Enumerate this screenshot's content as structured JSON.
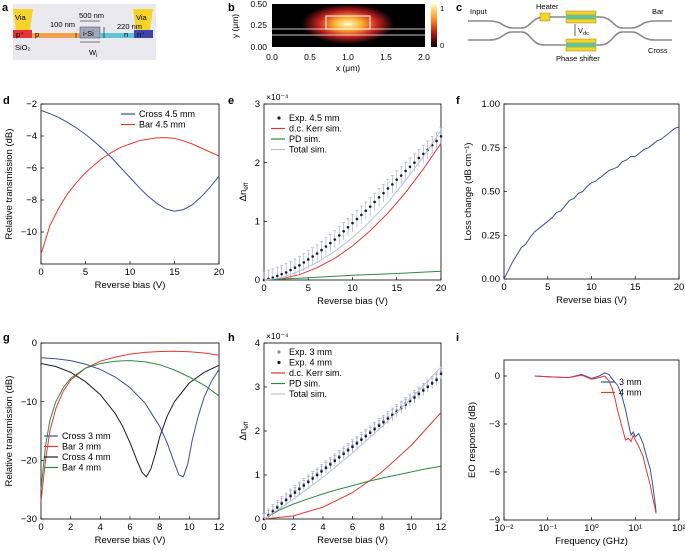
{
  "panels": {
    "a": {
      "label": "a",
      "via_left": "Via",
      "via_right": "Via",
      "p_plus": "p⁺",
      "p": "p",
      "i_si": "i-Si",
      "n": "n",
      "n_plus": "n⁺",
      "dim_100": "100 nm",
      "dim_500": "500 nm",
      "dim_220": "220 nm",
      "wi": "W",
      "wi_sub": "i",
      "sio2": "SiO₂"
    },
    "b": {
      "label": "b",
      "ylabel": "y (μm)",
      "xlabel": "x (μm)",
      "x_ticks": [
        "0.0",
        "0.5",
        "1.0",
        "1.5",
        "2.0"
      ],
      "y_ticks": [
        "0.50",
        "0.25",
        "0.00"
      ],
      "field_label": "e",
      "field_sup": "z",
      "field_sub": "ω",
      "sio2": "SiO₂",
      "cbar_ticks": [
        "1",
        "0"
      ]
    },
    "c": {
      "label": "c",
      "input": "Input",
      "heater": "Heater",
      "bar": "Bar",
      "cross": "Cross",
      "phase_shifter": "Phase shifter",
      "vdc": "V",
      "vdc_sub": "dc"
    }
  },
  "colors": {
    "blue": "#3a4fa0",
    "red": "#e03a33",
    "green": "#2d8a44",
    "grey": "#b8c0d8",
    "dark": "#1b1b2e",
    "via": "#f5d328"
  },
  "chart_data": [
    {
      "id": "d",
      "label": "d",
      "type": "line",
      "xlabel": "Reverse bias (V)",
      "ylabel": "Relative transmission (dB)",
      "xlim": [
        0,
        20
      ],
      "ylim": [
        -12,
        -2
      ],
      "xticks": [
        0,
        5,
        10,
        15,
        20
      ],
      "yticks": [
        -2,
        -4,
        -6,
        -8,
        -10
      ],
      "legend_position": "top-center",
      "series": [
        {
          "name": "Cross 4.5 mm",
          "color": "#3a4fa0",
          "x": [
            0,
            1,
            2,
            3,
            4,
            5,
            6,
            7,
            8,
            9,
            10,
            11,
            12,
            13,
            14,
            15,
            16,
            17,
            18,
            19,
            20
          ],
          "y": [
            -2.4,
            -2.6,
            -2.85,
            -3.15,
            -3.5,
            -3.9,
            -4.35,
            -4.85,
            -5.4,
            -6.0,
            -6.6,
            -7.2,
            -7.75,
            -8.2,
            -8.55,
            -8.7,
            -8.6,
            -8.3,
            -7.8,
            -7.2,
            -6.5
          ]
        },
        {
          "name": "Bar 4.5 mm",
          "color": "#e03a33",
          "x": [
            0,
            1,
            2,
            3,
            4,
            5,
            6,
            7,
            8,
            9,
            10,
            11,
            12,
            13,
            14,
            15,
            16,
            17,
            18,
            19,
            20
          ],
          "y": [
            -11.4,
            -9.6,
            -8.5,
            -7.6,
            -6.9,
            -6.3,
            -5.8,
            -5.35,
            -5.0,
            -4.7,
            -4.5,
            -4.3,
            -4.2,
            -4.12,
            -4.1,
            -4.15,
            -4.3,
            -4.5,
            -4.75,
            -5.0,
            -5.25
          ]
        }
      ]
    },
    {
      "id": "e",
      "label": "e",
      "type": "scatter",
      "xlabel": "Reverse bias (V)",
      "ylabel": "Δn",
      "ylabel_sub": "eff",
      "exponent": "×10⁻⁴",
      "xlim": [
        0,
        20
      ],
      "ylim": [
        0,
        3
      ],
      "xticks": [
        0,
        5,
        10,
        15,
        20
      ],
      "yticks": [
        0,
        1,
        2,
        3
      ],
      "legend_position": "top-left",
      "series": [
        {
          "name": "Exp. 4.5 mm",
          "color": "#1b1b2e",
          "kind": "points_err",
          "x": [
            0,
            0.5,
            1,
            1.5,
            2,
            2.5,
            3,
            3.5,
            4,
            4.5,
            5,
            5.5,
            6,
            6.5,
            7,
            7.5,
            8,
            8.5,
            9,
            9.5,
            10,
            10.5,
            11,
            11.5,
            12,
            12.5,
            13,
            13.5,
            14,
            14.5,
            15,
            15.5,
            16,
            16.5,
            17,
            17.5,
            18,
            18.5,
            19,
            19.5,
            20
          ],
          "y": [
            0,
            0.02,
            0.04,
            0.07,
            0.1,
            0.13,
            0.17,
            0.21,
            0.25,
            0.3,
            0.35,
            0.4,
            0.45,
            0.51,
            0.57,
            0.63,
            0.69,
            0.76,
            0.83,
            0.9,
            0.97,
            1.04,
            1.11,
            1.18,
            1.25,
            1.33,
            1.41,
            1.48,
            1.56,
            1.63,
            1.71,
            1.78,
            1.86,
            1.93,
            2.0,
            2.08,
            2.15,
            2.22,
            2.3,
            2.37,
            2.45
          ],
          "err": 0.15
        },
        {
          "name": "d.c. Kerr sim.",
          "color": "#e03a33",
          "kind": "line",
          "x": [
            0,
            2,
            4,
            6,
            8,
            10,
            12,
            14,
            16,
            18,
            20
          ],
          "y": [
            0,
            0.02,
            0.09,
            0.21,
            0.37,
            0.58,
            0.84,
            1.14,
            1.49,
            1.89,
            2.33
          ]
        },
        {
          "name": "PD sim.",
          "color": "#2d8a44",
          "kind": "line",
          "x": [
            0,
            5,
            10,
            15,
            20
          ],
          "y": [
            0,
            0.04,
            0.08,
            0.11,
            0.15
          ]
        },
        {
          "name": "Total sim.",
          "color": "#b8c0d8",
          "kind": "line",
          "x": [
            0,
            2,
            4,
            6,
            8,
            10,
            12,
            14,
            16,
            18,
            20
          ],
          "y": [
            0,
            0.04,
            0.15,
            0.3,
            0.49,
            0.72,
            1.0,
            1.32,
            1.7,
            2.1,
            2.55
          ]
        }
      ]
    },
    {
      "id": "f",
      "label": "f",
      "type": "line",
      "xlabel": "Reverse bias (V)",
      "ylabel": "Loss change (dB cm⁻¹)",
      "xlim": [
        0,
        20
      ],
      "ylim": [
        0,
        1.0
      ],
      "xticks": [
        0,
        5,
        10,
        15,
        20
      ],
      "yticks": [
        0,
        0.25,
        0.5,
        0.75,
        1.0
      ],
      "ytick_labels": [
        "0.00",
        "0.25",
        "0.50",
        "0.75",
        "1.00"
      ],
      "series": [
        {
          "name": "",
          "color": "#3a4fa0",
          "x": [
            0,
            0.5,
            1,
            1.5,
            2,
            2.5,
            3,
            3.5,
            4,
            4.5,
            5,
            5.5,
            6,
            6.5,
            7,
            7.5,
            8,
            8.5,
            9,
            9.5,
            10,
            10.5,
            11,
            11.5,
            12,
            12.5,
            13,
            13.5,
            14,
            14.5,
            15,
            15.5,
            16,
            16.5,
            17,
            17.5,
            18,
            18.5,
            19,
            19.5,
            20
          ],
          "y": [
            0,
            0.05,
            0.1,
            0.14,
            0.18,
            0.2,
            0.24,
            0.27,
            0.29,
            0.31,
            0.33,
            0.35,
            0.38,
            0.39,
            0.42,
            0.45,
            0.46,
            0.49,
            0.5,
            0.53,
            0.55,
            0.56,
            0.58,
            0.6,
            0.62,
            0.63,
            0.64,
            0.67,
            0.68,
            0.7,
            0.7,
            0.72,
            0.74,
            0.75,
            0.77,
            0.79,
            0.8,
            0.82,
            0.84,
            0.86,
            0.87
          ]
        }
      ]
    },
    {
      "id": "g",
      "label": "g",
      "type": "line",
      "xlabel": "Reverse bias (V)",
      "ylabel": "Relative transmission (dB)",
      "xlim": [
        0,
        12
      ],
      "ylim": [
        -30,
        0
      ],
      "xticks": [
        0,
        2,
        4,
        6,
        8,
        10,
        12
      ],
      "yticks": [
        0,
        -10,
        -20,
        -30
      ],
      "legend_position": "bottom-left",
      "series": [
        {
          "name": "Cross 3 mm",
          "color": "#3a4fa0",
          "x": [
            0,
            1,
            2,
            3,
            4,
            5,
            6,
            7,
            8,
            8.5,
            9,
            9.3,
            9.6,
            9.9,
            10.2,
            10.6,
            11,
            11.5,
            12
          ],
          "y": [
            -2.5,
            -2.7,
            -3.0,
            -3.6,
            -4.5,
            -5.8,
            -7.6,
            -10.2,
            -14.2,
            -17.0,
            -20.5,
            -22.5,
            -22.8,
            -20.5,
            -16.5,
            -12.5,
            -9.2,
            -6.5,
            -4.5
          ]
        },
        {
          "name": "Bar 3 mm",
          "color": "#e03a33",
          "x": [
            0,
            0.3,
            0.6,
            1,
            1.5,
            2,
            3,
            4,
            5,
            6,
            7,
            8,
            9,
            10,
            11,
            12
          ],
          "y": [
            -27.0,
            -20.0,
            -15.0,
            -11.2,
            -8.2,
            -6.3,
            -4.3,
            -3.1,
            -2.4,
            -1.9,
            -1.6,
            -1.45,
            -1.4,
            -1.5,
            -1.7,
            -2.1
          ]
        },
        {
          "name": "Cross 4 mm",
          "color": "#1b1b2e",
          "x": [
            0,
            1,
            2,
            3,
            4,
            5,
            5.5,
            6,
            6.5,
            6.8,
            7.1,
            7.4,
            7.7,
            8,
            8.5,
            9,
            10,
            11,
            12
          ],
          "y": [
            -3.5,
            -4.0,
            -5.0,
            -6.6,
            -8.8,
            -12.0,
            -14.2,
            -17.0,
            -20.2,
            -22.0,
            -22.8,
            -21.5,
            -19.0,
            -16.0,
            -12.5,
            -10.0,
            -6.8,
            -5.0,
            -3.8
          ]
        },
        {
          "name": "Bar 4 mm",
          "color": "#2d8a44",
          "x": [
            0,
            0.3,
            0.6,
            1,
            1.5,
            2,
            3,
            4,
            5,
            6,
            7,
            8,
            9,
            10,
            11,
            12
          ],
          "y": [
            -25.0,
            -17.5,
            -13.2,
            -10.0,
            -7.6,
            -6.0,
            -4.3,
            -3.5,
            -3.1,
            -3.0,
            -3.2,
            -3.7,
            -4.6,
            -5.8,
            -7.2,
            -9.0
          ]
        }
      ]
    },
    {
      "id": "h",
      "label": "h",
      "type": "scatter",
      "xlabel": "Reverse bias (V)",
      "ylabel": "Δn",
      "ylabel_sub": "eff",
      "exponent": "×10⁻⁴",
      "xlim": [
        0,
        12
      ],
      "ylim": [
        0,
        4
      ],
      "xticks": [
        0,
        2,
        4,
        6,
        8,
        10,
        12
      ],
      "yticks": [
        0,
        1,
        2,
        3,
        4
      ],
      "legend_position": "top-left",
      "series": [
        {
          "name": "Exp. 3 mm",
          "color": "#8a90b0",
          "kind": "points_err",
          "x": [
            0,
            0.3,
            0.6,
            0.9,
            1.2,
            1.5,
            1.8,
            2.1,
            2.4,
            2.7,
            3.0,
            3.3,
            3.6,
            3.9,
            4.2,
            4.5,
            4.8,
            5.1,
            5.4,
            5.7,
            6.0,
            6.3,
            6.6,
            6.9,
            7.2,
            7.5,
            7.8,
            8.1,
            8.4,
            8.7,
            9.0,
            9.3,
            9.6,
            9.9,
            10.2,
            10.5,
            10.8,
            11.1,
            11.4,
            11.7,
            12
          ],
          "y": [
            0,
            0.1,
            0.2,
            0.29,
            0.38,
            0.46,
            0.55,
            0.63,
            0.71,
            0.79,
            0.87,
            0.95,
            1.03,
            1.11,
            1.19,
            1.27,
            1.35,
            1.43,
            1.51,
            1.59,
            1.67,
            1.75,
            1.83,
            1.91,
            1.99,
            2.07,
            2.15,
            2.23,
            2.31,
            2.39,
            2.47,
            2.55,
            2.63,
            2.71,
            2.79,
            2.87,
            2.95,
            3.03,
            3.11,
            3.19,
            3.35
          ],
          "err": 0.13
        },
        {
          "name": "Exp. 4 mm",
          "color": "#1b1b2e",
          "kind": "points_err",
          "x": [
            0,
            0.3,
            0.6,
            0.9,
            1.2,
            1.5,
            1.8,
            2.1,
            2.4,
            2.7,
            3.0,
            3.3,
            3.6,
            3.9,
            4.2,
            4.5,
            4.8,
            5.1,
            5.4,
            5.7,
            6.0,
            6.3,
            6.6,
            6.9,
            7.2,
            7.5,
            7.8,
            8.1,
            8.4,
            8.7,
            9.0,
            9.3,
            9.6,
            9.9,
            10.2,
            10.5,
            10.8,
            11.1,
            11.4,
            11.7,
            12
          ],
          "y": [
            0,
            0.08,
            0.17,
            0.26,
            0.35,
            0.43,
            0.52,
            0.6,
            0.68,
            0.76,
            0.84,
            0.92,
            1.0,
            1.08,
            1.16,
            1.24,
            1.32,
            1.4,
            1.48,
            1.56,
            1.64,
            1.72,
            1.8,
            1.88,
            1.96,
            2.04,
            2.12,
            2.2,
            2.28,
            2.36,
            2.44,
            2.52,
            2.6,
            2.68,
            2.76,
            2.84,
            2.92,
            3.0,
            3.08,
            3.16,
            3.3
          ],
          "err": 0.12
        },
        {
          "name": "d.c. Kerr sim.",
          "color": "#e03a33",
          "kind": "line",
          "x": [
            0,
            2,
            4,
            6,
            8,
            10,
            12
          ],
          "y": [
            0,
            0.07,
            0.27,
            0.6,
            1.07,
            1.68,
            2.42
          ]
        },
        {
          "name": "PD sim.",
          "color": "#2d8a44",
          "kind": "line",
          "x": [
            0,
            1,
            2,
            3,
            4,
            5,
            6,
            7,
            8,
            9,
            10,
            11,
            12
          ],
          "y": [
            0,
            0.2,
            0.34,
            0.46,
            0.57,
            0.67,
            0.76,
            0.85,
            0.93,
            1.0,
            1.07,
            1.14,
            1.2
          ]
        },
        {
          "name": "Total sim.",
          "color": "#b8c0d8",
          "kind": "line",
          "x": [
            0,
            2,
            4,
            6,
            8,
            10,
            12
          ],
          "y": [
            0,
            0.45,
            0.95,
            1.5,
            2.1,
            2.75,
            3.45
          ]
        }
      ]
    },
    {
      "id": "i",
      "label": "i",
      "type": "line",
      "xlabel": "Frequency (GHz)",
      "ylabel": "EO response (dB)",
      "xscale": "log",
      "xlim": [
        0.01,
        100
      ],
      "ylim": [
        -9,
        1
      ],
      "xticks": [
        0.01,
        0.1,
        1,
        10,
        100
      ],
      "xtick_labels": [
        "10⁻²",
        "10⁻¹",
        "10⁰",
        "10¹",
        "10²"
      ],
      "yticks": [
        0,
        -3,
        -6,
        -9
      ],
      "legend_position": "top-right",
      "series": [
        {
          "name": "3 mm",
          "color": "#3a4fa0",
          "x": [
            0.05,
            0.1,
            0.3,
            0.6,
            1,
            1.5,
            2,
            2.5,
            3,
            4,
            5,
            6,
            7,
            8,
            9,
            10,
            12,
            15,
            18,
            22,
            25,
            28,
            30
          ],
          "y": [
            0,
            -0.05,
            -0.1,
            0.1,
            -0.15,
            0,
            0.2,
            0.1,
            -0.2,
            -0.6,
            -1.3,
            -2.1,
            -3.0,
            -3.7,
            -3.5,
            -3.8,
            -3.6,
            -4.2,
            -5.0,
            -5.8,
            -6.8,
            -7.8,
            -8.5
          ]
        },
        {
          "name": "4 mm",
          "color": "#e03a33",
          "x": [
            0.05,
            0.1,
            0.3,
            0.6,
            1,
            1.5,
            2,
            2.5,
            3,
            3.5,
            4,
            5,
            6,
            7,
            8,
            9,
            10,
            12,
            15,
            18,
            22,
            25,
            28,
            30
          ],
          "y": [
            0,
            -0.05,
            -0.1,
            0.05,
            -0.2,
            -0.1,
            0.0,
            -0.3,
            -0.8,
            -1.5,
            -2.2,
            -3.2,
            -4.0,
            -3.9,
            -4.1,
            -3.7,
            -4.0,
            -4.4,
            -5.0,
            -5.9,
            -6.8,
            -7.6,
            -8.2,
            -8.6
          ]
        }
      ]
    }
  ]
}
